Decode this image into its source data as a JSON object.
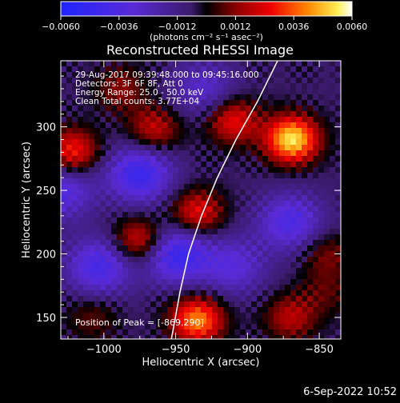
{
  "chart_data": {
    "type": "heatmap",
    "title": "Reconstructed RHESSI Image",
    "xlabel": "Heliocentric X (arcsec)",
    "ylabel": "Heliocentric Y (arcsec)",
    "xlim": [
      -1030,
      -835
    ],
    "ylim": [
      133,
      352
    ],
    "xticks": [
      -1000,
      -950,
      -900,
      -850
    ],
    "xtick_labels": [
      "−1000",
      "−950",
      "−900",
      "−850"
    ],
    "yticks": [
      150,
      200,
      250,
      300
    ],
    "ytick_labels": [
      "150",
      "200",
      "250",
      "300"
    ],
    "colorbar": {
      "range": [
        -0.006,
        0.006
      ],
      "ticks": [
        -0.006,
        -0.0036,
        -0.0012,
        0.0012,
        0.0036,
        0.006
      ],
      "tick_labels": [
        "−0.0060",
        "−0.0036",
        "−0.0012",
        "0.0012",
        "0.0036",
        "0.0060"
      ],
      "unit_label": "(photons cm⁻² s⁻¹ asec⁻²)"
    },
    "annotations": [
      "29-Aug-2017 09:39:48.000 to 09:45:16.000",
      "Detectors: 3F 6F 8F, Att 0",
      "Energy Range: 25.0 - 50.0 keV",
      "Clean     Total counts: 3.77E+04"
    ],
    "peak_label": "Position of Peak = [-869,290]",
    "sources": [
      {
        "x": -869,
        "y": 290,
        "value": 0.006
      },
      {
        "x": -935,
        "y": 148,
        "value": 0.0048
      },
      {
        "x": -1022,
        "y": 280,
        "value": 0.0037
      },
      {
        "x": -975,
        "y": 210,
        "value": 0.0035
      },
      {
        "x": -935,
        "y": 232,
        "value": 0.0033
      },
      {
        "x": -910,
        "y": 305,
        "value": 0.0033
      },
      {
        "x": -965,
        "y": 298,
        "value": 0.0027
      },
      {
        "x": -870,
        "y": 150,
        "value": 0.0024
      },
      {
        "x": -988,
        "y": 330,
        "value": 0.0018
      },
      {
        "x": -845,
        "y": 200,
        "value": 0.0017
      },
      {
        "x": -1008,
        "y": 150,
        "value": 0.0014
      },
      {
        "x": -845,
        "y": 170,
        "value": 0.0012
      }
    ],
    "negatives": [
      {
        "x": -975,
        "y": 263,
        "value": -0.004
      },
      {
        "x": -1003,
        "y": 190,
        "value": -0.0035
      },
      {
        "x": -950,
        "y": 200,
        "value": -0.0042
      },
      {
        "x": -870,
        "y": 225,
        "value": -0.0032
      },
      {
        "x": -910,
        "y": 190,
        "value": -0.0025
      },
      {
        "x": -1030,
        "y": 250,
        "value": -0.003
      },
      {
        "x": -930,
        "y": 330,
        "value": -0.0022
      }
    ],
    "limb": [
      [
        -879,
        352
      ],
      [
        -893,
        320
      ],
      [
        -908,
        290
      ],
      [
        -921,
        260
      ],
      [
        -932,
        230
      ],
      [
        -941,
        200
      ],
      [
        -947,
        170
      ],
      [
        -951,
        145
      ],
      [
        -953,
        133
      ]
    ]
  },
  "footer": {
    "timestamp": "6-Sep-2022 10:52"
  }
}
